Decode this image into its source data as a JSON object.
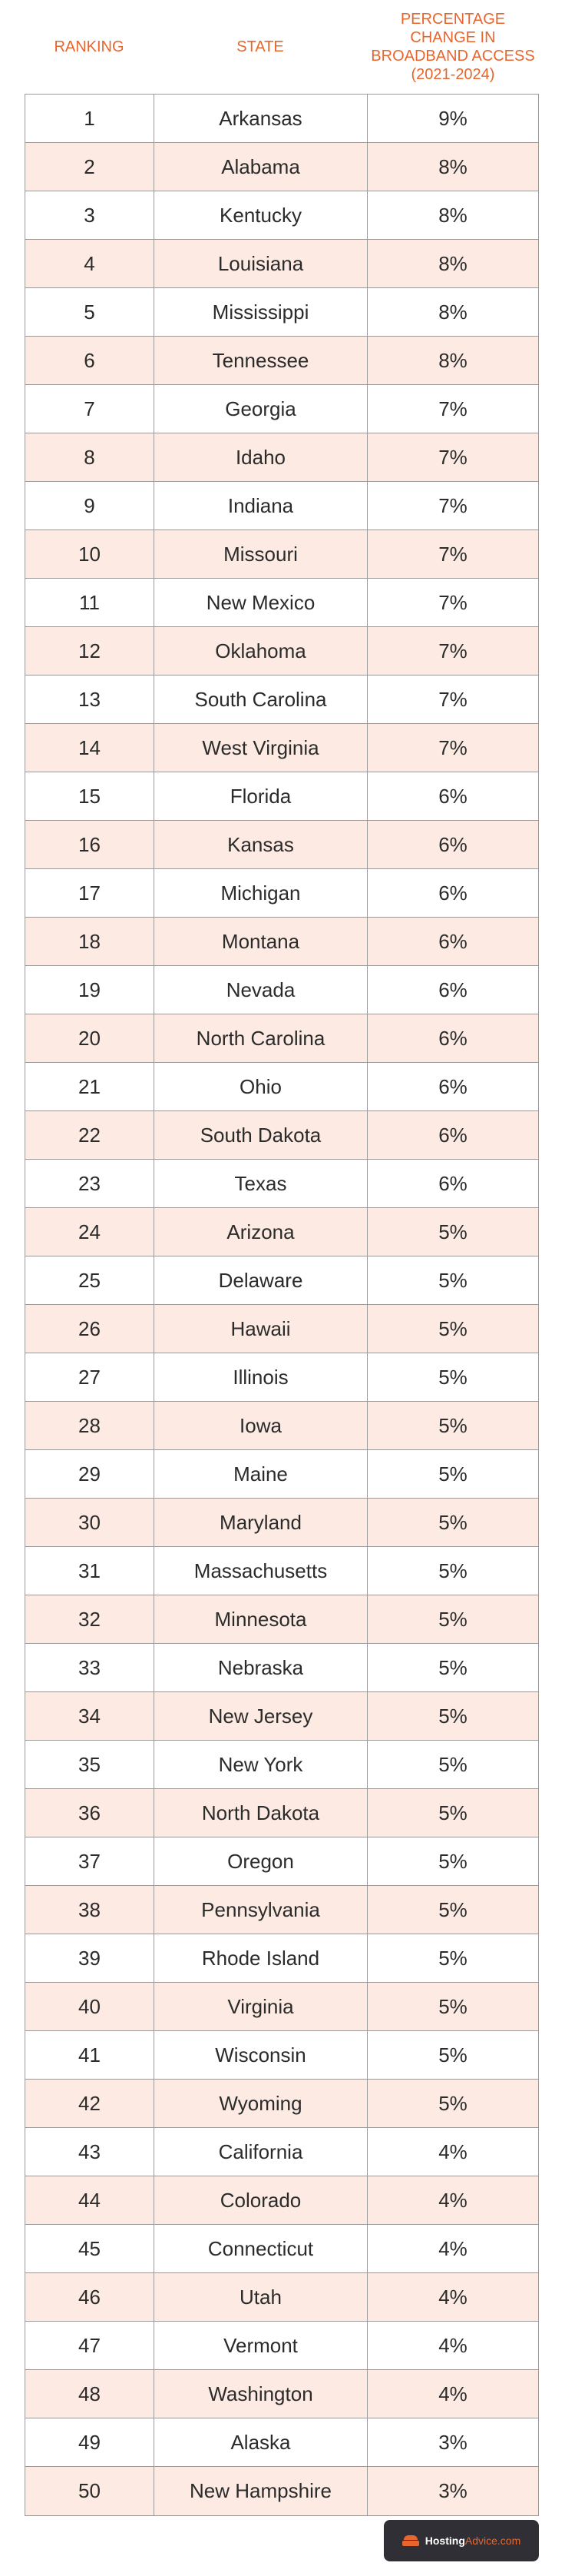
{
  "header": {
    "col_ranking": "RANKING",
    "col_state": "STATE",
    "col_change": "PERCENTAGE\nCHANGE IN\nBROADBAND ACCESS\n(2021-2024)"
  },
  "chart_data": {
    "type": "table",
    "columns": [
      "RANKING",
      "STATE",
      "PERCENTAGE CHANGE IN BROADBAND ACCESS (2021-2024)"
    ],
    "rows": [
      [
        "1",
        "Arkansas",
        "9%"
      ],
      [
        "2",
        "Alabama",
        "8%"
      ],
      [
        "3",
        "Kentucky",
        "8%"
      ],
      [
        "4",
        "Louisiana",
        "8%"
      ],
      [
        "5",
        "Mississippi",
        "8%"
      ],
      [
        "6",
        "Tennessee",
        "8%"
      ],
      [
        "7",
        "Georgia",
        "7%"
      ],
      [
        "8",
        "Idaho",
        "7%"
      ],
      [
        "9",
        "Indiana",
        "7%"
      ],
      [
        "10",
        "Missouri",
        "7%"
      ],
      [
        "11",
        "New Mexico",
        "7%"
      ],
      [
        "12",
        "Oklahoma",
        "7%"
      ],
      [
        "13",
        "South Carolina",
        "7%"
      ],
      [
        "14",
        "West Virginia",
        "7%"
      ],
      [
        "15",
        "Florida",
        "6%"
      ],
      [
        "16",
        "Kansas",
        "6%"
      ],
      [
        "17",
        "Michigan",
        "6%"
      ],
      [
        "18",
        "Montana",
        "6%"
      ],
      [
        "19",
        "Nevada",
        "6%"
      ],
      [
        "20",
        "North Carolina",
        "6%"
      ],
      [
        "21",
        "Ohio",
        "6%"
      ],
      [
        "22",
        "South Dakota",
        "6%"
      ],
      [
        "23",
        "Texas",
        "6%"
      ],
      [
        "24",
        "Arizona",
        "5%"
      ],
      [
        "25",
        "Delaware",
        "5%"
      ],
      [
        "26",
        "Hawaii",
        "5%"
      ],
      [
        "27",
        "Illinois",
        "5%"
      ],
      [
        "28",
        "Iowa",
        "5%"
      ],
      [
        "29",
        "Maine",
        "5%"
      ],
      [
        "30",
        "Maryland",
        "5%"
      ],
      [
        "31",
        "Massachusetts",
        "5%"
      ],
      [
        "32",
        "Minnesota",
        "5%"
      ],
      [
        "33",
        "Nebraska",
        "5%"
      ],
      [
        "34",
        "New Jersey",
        "5%"
      ],
      [
        "35",
        "New York",
        "5%"
      ],
      [
        "36",
        "North Dakota",
        "5%"
      ],
      [
        "37",
        "Oregon",
        "5%"
      ],
      [
        "38",
        "Pennsylvania",
        "5%"
      ],
      [
        "39",
        "Rhode Island",
        "5%"
      ],
      [
        "40",
        "Virginia",
        "5%"
      ],
      [
        "41",
        "Wisconsin",
        "5%"
      ],
      [
        "42",
        "Wyoming",
        "5%"
      ],
      [
        "43",
        "California",
        "4%"
      ],
      [
        "44",
        "Colorado",
        "4%"
      ],
      [
        "45",
        "Connecticut",
        "4%"
      ],
      [
        "46",
        "Utah",
        "4%"
      ],
      [
        "47",
        "Vermont",
        "4%"
      ],
      [
        "48",
        "Washington",
        "4%"
      ],
      [
        "49",
        "Alaska",
        "3%"
      ],
      [
        "50",
        "New Hampshire",
        "3%"
      ]
    ]
  },
  "logo": {
    "brand": "Hosting",
    "accent": "Advice.com"
  },
  "colors": {
    "accent": "#e8662e",
    "row_alt": "#fdebe3",
    "border": "#9a9a9a",
    "logo_bg": "#2f2f35"
  }
}
